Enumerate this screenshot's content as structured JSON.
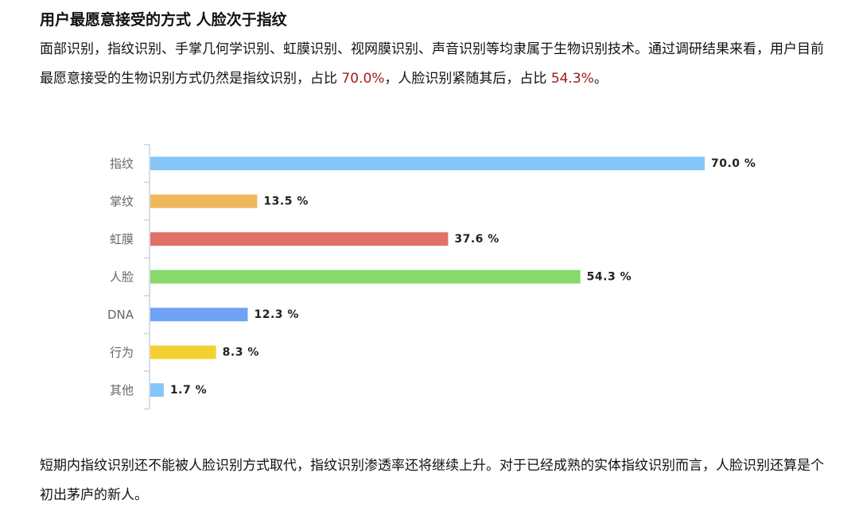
{
  "article": {
    "title": "用户最愿意接受的方式 人脸次于指纹",
    "intro_part1": "面部识别，指纹识别、手掌几何学识别、虹膜识别、视网膜识别、声音识别等均隶属于生物识别技术。通过调研结果来看，用户目前最愿意接受的生物识别方式仍然是指纹识别，占比 ",
    "intro_highlight1": "70.0%",
    "intro_part2": "，人脸识别紧随其后，占比 ",
    "intro_highlight2": "54.3%",
    "intro_part3": "。",
    "outro": "短期内指纹识别还不能被人脸识别方式取代，指纹识别渗透率还将继续上升。对于已经成熟的实体指纹识别而言，人脸识别还算是个初出茅庐的新人。",
    "highlight_color": "#a01c1c"
  },
  "chart_data": {
    "type": "bar",
    "orientation": "horizontal",
    "categories": [
      "指纹",
      "掌纹",
      "虹膜",
      "人脸",
      "DNA",
      "行为",
      "其他"
    ],
    "values": [
      70.0,
      13.5,
      37.6,
      54.3,
      12.3,
      8.3,
      1.7
    ],
    "data_labels": [
      "70.0 %",
      "13.5 %",
      "37.6 %",
      "54.3 %",
      "12.3 %",
      "8.3 %",
      "1.7 %"
    ],
    "colors": [
      "#86c5f7",
      "#f0b85b",
      "#e07166",
      "#87d96b",
      "#6fa2f5",
      "#f5d033",
      "#86c5f7"
    ],
    "xlim": [
      0,
      70
    ],
    "grid": false,
    "legend": "none"
  }
}
